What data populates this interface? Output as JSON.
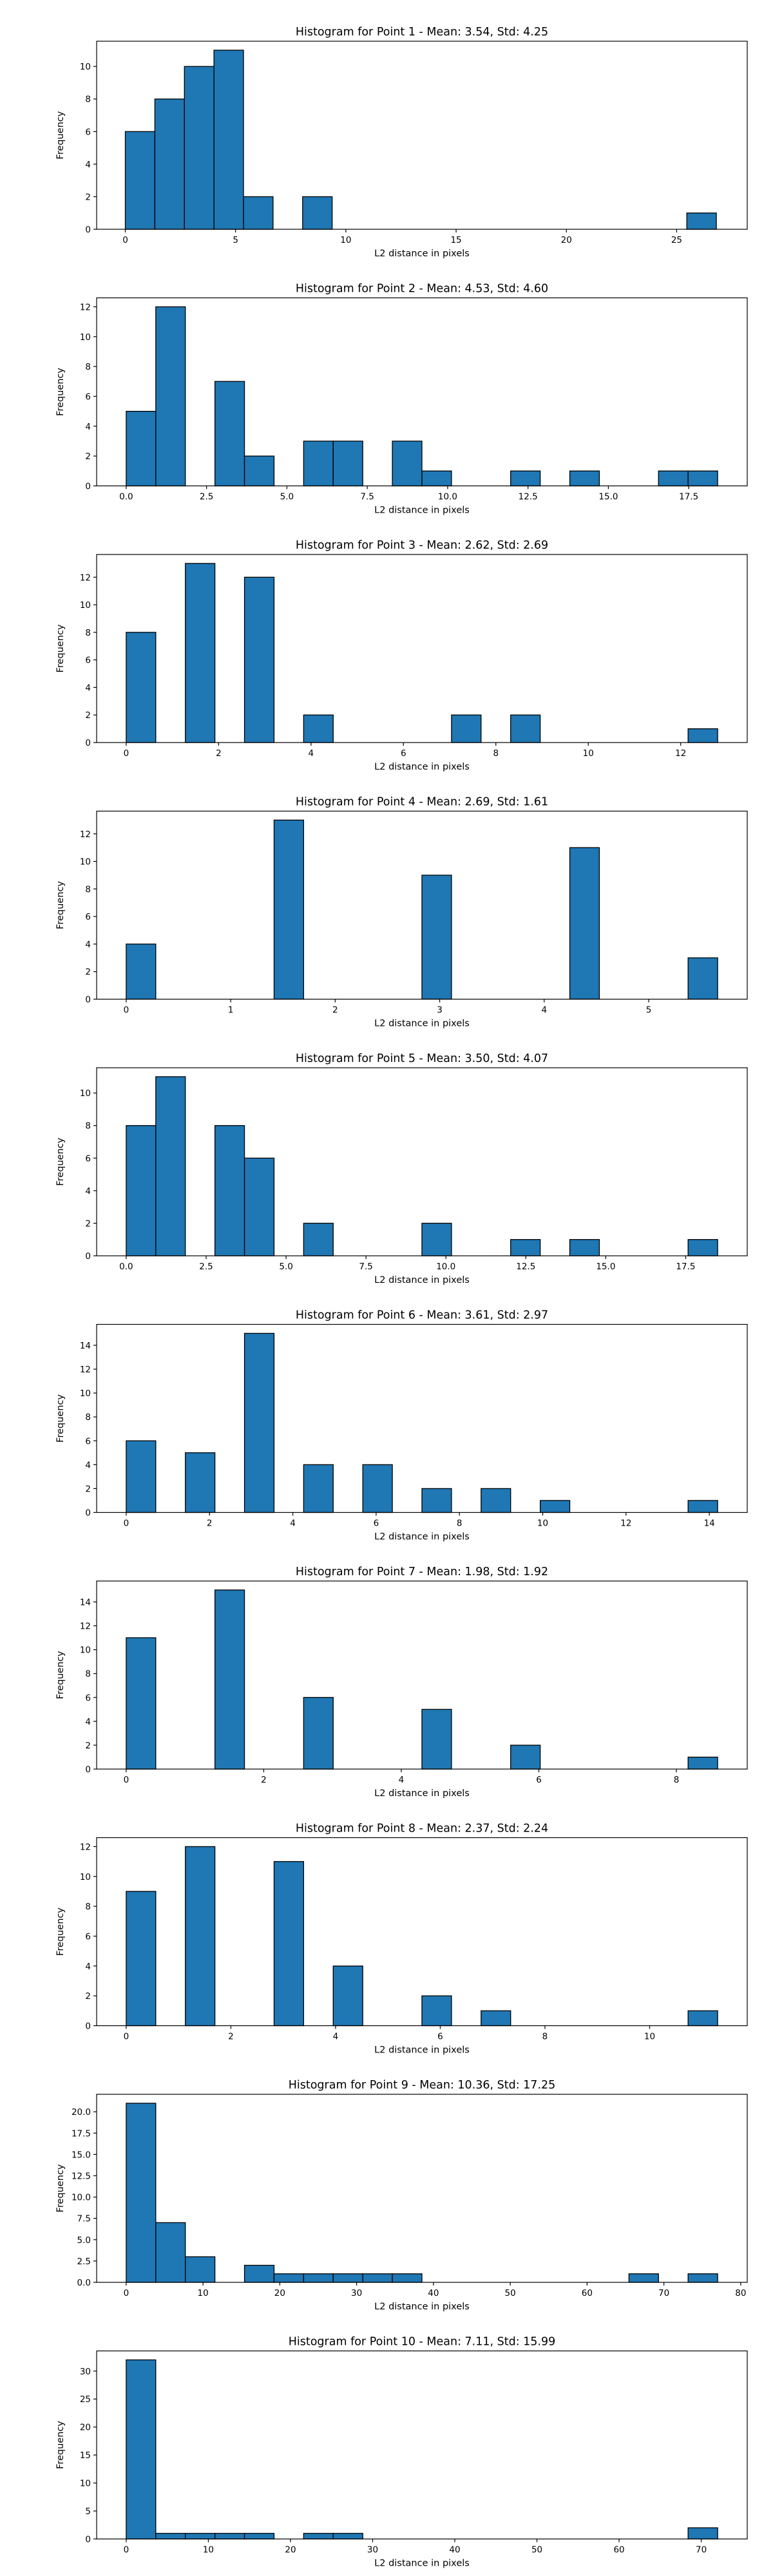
{
  "chart_data": [
    {
      "type": "bar",
      "title": "Histogram for Point 1 - Mean: 3.54, Std: 4.25",
      "xlabel": "L2 distance in pixels",
      "ylabel": "Frequency",
      "xlim": [
        -1.3,
        28.2
      ],
      "ylim": [
        0,
        11.55
      ],
      "xticks": [
        0,
        5,
        10,
        15,
        20,
        25
      ],
      "xtick_labels": [
        "0",
        "5",
        "10",
        "15",
        "20",
        "25"
      ],
      "yticks": [
        0,
        2,
        4,
        6,
        8,
        10
      ],
      "ytick_labels": [
        "0",
        "2",
        "4",
        "6",
        "8",
        "10"
      ],
      "bins": [
        [
          0.0,
          1.34,
          6
        ],
        [
          1.34,
          2.68,
          8
        ],
        [
          2.68,
          4.02,
          10
        ],
        [
          4.02,
          5.36,
          11
        ],
        [
          5.36,
          6.7,
          2
        ],
        [
          8.04,
          9.38,
          2
        ],
        [
          25.46,
          26.8,
          1
        ]
      ]
    },
    {
      "type": "bar",
      "title": "Histogram for Point 2 - Mean: 4.53, Std: 4.60",
      "xlabel": "L2 distance in pixels",
      "ylabel": "Frequency",
      "xlim": [
        -0.92,
        19.32
      ],
      "ylim": [
        0,
        12.6
      ],
      "xticks": [
        0,
        2.5,
        5,
        7.5,
        10,
        12.5,
        15,
        17.5
      ],
      "xtick_labels": [
        "0.0",
        "2.5",
        "5.0",
        "7.5",
        "10.0",
        "12.5",
        "15.0",
        "17.5"
      ],
      "yticks": [
        0,
        2,
        4,
        6,
        8,
        10,
        12
      ],
      "ytick_labels": [
        "0",
        "2",
        "4",
        "6",
        "8",
        "10",
        "12"
      ],
      "bins": [
        [
          0.0,
          0.92,
          5
        ],
        [
          0.92,
          1.84,
          12
        ],
        [
          2.76,
          3.68,
          7
        ],
        [
          3.68,
          4.6,
          2
        ],
        [
          5.52,
          6.44,
          3
        ],
        [
          6.44,
          7.36,
          3
        ],
        [
          8.28,
          9.2,
          3
        ],
        [
          9.2,
          10.12,
          1
        ],
        [
          11.96,
          12.88,
          1
        ],
        [
          13.8,
          14.72,
          1
        ],
        [
          16.56,
          17.48,
          1
        ],
        [
          17.48,
          18.4,
          1
        ]
      ]
    },
    {
      "type": "bar",
      "title": "Histogram for Point 3 - Mean: 2.62, Std: 2.69",
      "xlabel": "L2 distance in pixels",
      "ylabel": "Frequency",
      "xlim": [
        -0.64,
        13.44
      ],
      "ylim": [
        0,
        13.65
      ],
      "xticks": [
        0,
        2,
        4,
        6,
        8,
        10,
        12
      ],
      "xtick_labels": [
        "0",
        "2",
        "4",
        "6",
        "8",
        "10",
        "12"
      ],
      "yticks": [
        0,
        2,
        4,
        6,
        8,
        10,
        12
      ],
      "ytick_labels": [
        "0",
        "2",
        "4",
        "6",
        "8",
        "10",
        "12"
      ],
      "bins": [
        [
          0.0,
          0.64,
          8
        ],
        [
          1.28,
          1.92,
          13
        ],
        [
          2.56,
          3.2,
          12
        ],
        [
          3.84,
          4.48,
          2
        ],
        [
          7.04,
          7.68,
          2
        ],
        [
          8.32,
          8.96,
          2
        ],
        [
          12.16,
          12.8,
          1
        ]
      ]
    },
    {
      "type": "bar",
      "title": "Histogram for Point 4 - Mean: 2.69, Std: 1.61",
      "xlabel": "L2 distance in pixels",
      "ylabel": "Frequency",
      "xlim": [
        -0.283,
        5.943
      ],
      "ylim": [
        0,
        13.65
      ],
      "xticks": [
        0,
        1,
        2,
        3,
        4,
        5
      ],
      "xtick_labels": [
        "0",
        "1",
        "2",
        "3",
        "4",
        "5"
      ],
      "yticks": [
        0,
        2,
        4,
        6,
        8,
        10,
        12
      ],
      "ytick_labels": [
        "0",
        "2",
        "4",
        "6",
        "8",
        "10",
        "12"
      ],
      "bins": [
        [
          0.0,
          0.283,
          4
        ],
        [
          1.415,
          1.698,
          13
        ],
        [
          2.83,
          3.113,
          9
        ],
        [
          4.245,
          4.528,
          11
        ],
        [
          5.377,
          5.66,
          3
        ]
      ]
    },
    {
      "type": "bar",
      "title": "Histogram for Point 5 - Mean: 3.50, Std: 4.07",
      "xlabel": "L2 distance in pixels",
      "ylabel": "Frequency",
      "xlim": [
        -0.925,
        19.425
      ],
      "ylim": [
        0,
        11.55
      ],
      "xticks": [
        0,
        2.5,
        5,
        7.5,
        10,
        12.5,
        15,
        17.5
      ],
      "xtick_labels": [
        "0.0",
        "2.5",
        "5.0",
        "7.5",
        "10.0",
        "12.5",
        "15.0",
        "17.5"
      ],
      "yticks": [
        0,
        2,
        4,
        6,
        8,
        10
      ],
      "ytick_labels": [
        "0",
        "2",
        "4",
        "6",
        "8",
        "10"
      ],
      "bins": [
        [
          0.0,
          0.925,
          8
        ],
        [
          0.925,
          1.85,
          11
        ],
        [
          2.775,
          3.7,
          8
        ],
        [
          3.7,
          4.625,
          6
        ],
        [
          5.55,
          6.475,
          2
        ],
        [
          9.25,
          10.175,
          2
        ],
        [
          12.025,
          12.95,
          1
        ],
        [
          13.875,
          14.8,
          1
        ],
        [
          17.575,
          18.5,
          1
        ]
      ]
    },
    {
      "type": "bar",
      "title": "Histogram for Point 6 - Mean: 3.61, Std: 2.97",
      "xlabel": "L2 distance in pixels",
      "ylabel": "Frequency",
      "xlim": [
        -0.71,
        14.91
      ],
      "ylim": [
        0,
        15.75
      ],
      "xticks": [
        0,
        2,
        4,
        6,
        8,
        10,
        12,
        14
      ],
      "xtick_labels": [
        "0",
        "2",
        "4",
        "6",
        "8",
        "10",
        "12",
        "14"
      ],
      "yticks": [
        0,
        2,
        4,
        6,
        8,
        10,
        12,
        14
      ],
      "ytick_labels": [
        "0",
        "2",
        "4",
        "6",
        "8",
        "10",
        "12",
        "14"
      ],
      "bins": [
        [
          0.0,
          0.71,
          6
        ],
        [
          1.42,
          2.13,
          5
        ],
        [
          2.84,
          3.55,
          15
        ],
        [
          4.26,
          4.97,
          4
        ],
        [
          5.68,
          6.39,
          4
        ],
        [
          7.1,
          7.81,
          2
        ],
        [
          8.52,
          9.23,
          2
        ],
        [
          9.94,
          10.65,
          1
        ],
        [
          13.49,
          14.2,
          1
        ]
      ]
    },
    {
      "type": "bar",
      "title": "Histogram for Point 7 - Mean: 1.98, Std: 1.92",
      "xlabel": "L2 distance in pixels",
      "ylabel": "Frequency",
      "xlim": [
        -0.43,
        9.03
      ],
      "ylim": [
        0,
        15.75
      ],
      "xticks": [
        0,
        2,
        4,
        6,
        8
      ],
      "xtick_labels": [
        "0",
        "2",
        "4",
        "6",
        "8"
      ],
      "yticks": [
        0,
        2,
        4,
        6,
        8,
        10,
        12,
        14
      ],
      "ytick_labels": [
        "0",
        "2",
        "4",
        "6",
        "8",
        "10",
        "12",
        "14"
      ],
      "bins": [
        [
          0.0,
          0.43,
          11
        ],
        [
          1.29,
          1.72,
          15
        ],
        [
          2.58,
          3.01,
          6
        ],
        [
          4.3,
          4.73,
          5
        ],
        [
          5.59,
          6.02,
          2
        ],
        [
          8.17,
          8.6,
          1
        ]
      ]
    },
    {
      "type": "bar",
      "title": "Histogram for Point 8 - Mean: 2.37, Std: 2.24",
      "xlabel": "L2 distance in pixels",
      "ylabel": "Frequency",
      "xlim": [
        -0.565,
        11.865
      ],
      "ylim": [
        0,
        12.6
      ],
      "xticks": [
        0,
        2,
        4,
        6,
        8,
        10
      ],
      "xtick_labels": [
        "0",
        "2",
        "4",
        "6",
        "8",
        "10"
      ],
      "yticks": [
        0,
        2,
        4,
        6,
        8,
        10,
        12
      ],
      "ytick_labels": [
        "0",
        "2",
        "4",
        "6",
        "8",
        "10",
        "12"
      ],
      "bins": [
        [
          0.0,
          0.565,
          9
        ],
        [
          1.13,
          1.695,
          12
        ],
        [
          2.825,
          3.39,
          11
        ],
        [
          3.955,
          4.52,
          4
        ],
        [
          5.65,
          6.215,
          2
        ],
        [
          6.78,
          7.345,
          1
        ],
        [
          10.735,
          11.3,
          1
        ]
      ]
    },
    {
      "type": "bar",
      "title": "Histogram for Point 9 - Mean: 10.36, Std: 17.25",
      "xlabel": "L2 distance in pixels",
      "ylabel": "Frequency",
      "xlim": [
        -3.85,
        80.85
      ],
      "ylim": [
        0,
        22.05
      ],
      "xticks": [
        0,
        10,
        20,
        30,
        40,
        50,
        60,
        70,
        80
      ],
      "xtick_labels": [
        "0",
        "10",
        "20",
        "30",
        "40",
        "50",
        "60",
        "70",
        "80"
      ],
      "yticks": [
        0,
        2.5,
        5,
        7.5,
        10,
        12.5,
        15,
        17.5,
        20
      ],
      "ytick_labels": [
        "0.0",
        "2.5",
        "5.0",
        "7.5",
        "10.0",
        "12.5",
        "15.0",
        "17.5",
        "20.0"
      ],
      "bins": [
        [
          0.0,
          3.85,
          21
        ],
        [
          3.85,
          7.7,
          7
        ],
        [
          7.7,
          11.55,
          3
        ],
        [
          15.4,
          19.25,
          2
        ],
        [
          19.25,
          23.1,
          1
        ],
        [
          23.1,
          26.95,
          1
        ],
        [
          26.95,
          30.8,
          1
        ],
        [
          30.8,
          34.65,
          1
        ],
        [
          34.65,
          38.5,
          1
        ],
        [
          65.45,
          69.3,
          1
        ],
        [
          73.15,
          77.0,
          1
        ]
      ]
    },
    {
      "type": "bar",
      "title": "Histogram for Point 10 - Mean: 7.11, Std: 15.99",
      "xlabel": "L2 distance in pixels",
      "ylabel": "Frequency",
      "xlim": [
        -3.6,
        75.6
      ],
      "ylim": [
        0,
        33.6
      ],
      "xticks": [
        0,
        10,
        20,
        30,
        40,
        50,
        60,
        70
      ],
      "xtick_labels": [
        "0",
        "10",
        "20",
        "30",
        "40",
        "50",
        "60",
        "70"
      ],
      "yticks": [
        0,
        5,
        10,
        15,
        20,
        25,
        30
      ],
      "ytick_labels": [
        "0",
        "5",
        "10",
        "15",
        "20",
        "25",
        "30"
      ],
      "bins": [
        [
          0.0,
          3.6,
          32
        ],
        [
          3.6,
          7.2,
          1
        ],
        [
          7.2,
          10.8,
          1
        ],
        [
          10.8,
          14.4,
          1
        ],
        [
          14.4,
          18.0,
          1
        ],
        [
          21.6,
          25.2,
          1
        ],
        [
          25.2,
          28.8,
          1
        ],
        [
          68.4,
          72.0,
          2
        ]
      ]
    }
  ]
}
